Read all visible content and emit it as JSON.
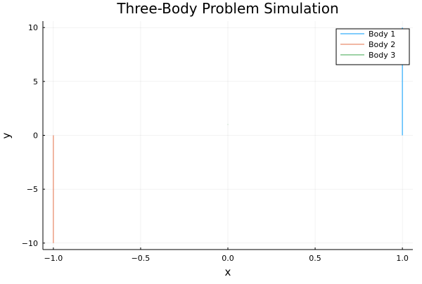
{
  "chart_data": {
    "type": "line",
    "title": "Three-Body Problem Simulation",
    "xlabel": "x",
    "ylabel": "y",
    "xlim": [
      -1.06,
      1.06
    ],
    "ylim": [
      -10.6,
      10.6
    ],
    "xticks": [
      -1.0,
      -0.5,
      0.0,
      0.5,
      1.0
    ],
    "xtick_labels": [
      "−1.0",
      "−0.5",
      "0.0",
      "0.5",
      "1.0"
    ],
    "yticks": [
      -10,
      -5,
      0,
      5,
      10
    ],
    "ytick_labels": [
      "−10",
      "−5",
      "0",
      "5",
      "10"
    ],
    "grid": true,
    "legend_position": "top-right",
    "series": [
      {
        "name": "Body 1",
        "color": "#009AFA",
        "x": [
          1.0,
          1.0
        ],
        "y": [
          0.0,
          10.0
        ]
      },
      {
        "name": "Body 2",
        "color": "#E36F47",
        "x": [
          -1.0,
          -1.0
        ],
        "y": [
          0.0,
          -10.0
        ]
      },
      {
        "name": "Body 3",
        "color": "#3EA44E",
        "x": [
          0.0,
          0.0
        ],
        "y": [
          0.96,
          1.04
        ]
      }
    ]
  }
}
